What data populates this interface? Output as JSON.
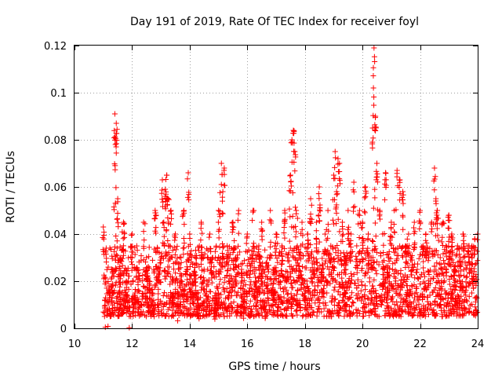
{
  "chart_data": {
    "type": "scatter",
    "title": "Day 191 of 2019, Rate Of TEC Index for receiver foyl",
    "xlabel": "GPS time / hours",
    "ylabel": "ROTI / TECUs",
    "xlim": [
      10,
      24
    ],
    "ylim": [
      0,
      0.12
    ],
    "xticks": [
      10,
      12,
      14,
      16,
      18,
      20,
      22,
      24
    ],
    "yticks": [
      0,
      0.02,
      0.04,
      0.06,
      0.08,
      0.1,
      0.12
    ],
    "xtick_labels": [
      "10",
      "12",
      "14",
      "16",
      "18",
      "20",
      "22",
      "24"
    ],
    "ytick_labels": [
      "0",
      "0.02",
      "0.04",
      "0.06",
      "0.08",
      "0.1",
      "0.12"
    ],
    "grid": true,
    "marker": "plus",
    "series_color": "#ff0000",
    "series": [
      {
        "name": "ROTI",
        "x": [
          11.0,
          11.05,
          11.1,
          11.15,
          11.2,
          11.3,
          11.4,
          11.42,
          11.45,
          11.5,
          11.55,
          11.6,
          11.7,
          11.8,
          11.9,
          12.0,
          12.1,
          12.2,
          12.3,
          12.4,
          12.5,
          12.6,
          12.7,
          12.8,
          12.9,
          13.0,
          13.05,
          13.1,
          13.15,
          13.2,
          13.25,
          13.3,
          13.35,
          13.4,
          13.5,
          13.6,
          13.7,
          13.8,
          13.9,
          13.95,
          14.0,
          14.1,
          14.2,
          14.3,
          14.4,
          14.5,
          14.6,
          14.7,
          14.8,
          14.9,
          15.0,
          15.1,
          15.15,
          15.2,
          15.3,
          15.4,
          15.5,
          15.6,
          15.7,
          15.8,
          15.9,
          16.0,
          16.1,
          16.2,
          16.3,
          16.4,
          16.5,
          16.6,
          16.7,
          16.8,
          16.9,
          17.0,
          17.1,
          17.2,
          17.3,
          17.4,
          17.5,
          17.55,
          17.6,
          17.65,
          17.7,
          17.8,
          17.9,
          18.0,
          18.1,
          18.2,
          18.3,
          18.4,
          18.5,
          18.6,
          18.7,
          18.8,
          18.9,
          19.0,
          19.05,
          19.1,
          19.15,
          19.2,
          19.3,
          19.4,
          19.5,
          19.6,
          19.7,
          19.8,
          19.9,
          20.0,
          20.1,
          20.2,
          20.3,
          20.35,
          20.38,
          20.4,
          20.45,
          20.5,
          20.6,
          20.7,
          20.8,
          20.9,
          21.0,
          21.1,
          21.2,
          21.3,
          21.4,
          21.5,
          21.6,
          21.7,
          21.8,
          21.9,
          22.0,
          22.1,
          22.2,
          22.3,
          22.4,
          22.5,
          22.55,
          22.6,
          22.7,
          22.8,
          22.9,
          23.0,
          23.1,
          23.2,
          23.3,
          23.4,
          23.5,
          23.6,
          23.7,
          23.8,
          23.9,
          24.0
        ],
        "y": [
          0.043,
          0.012,
          0.034,
          0.008,
          0.018,
          0.025,
          0.091,
          0.078,
          0.087,
          0.055,
          0.015,
          0.03,
          0.045,
          0.02,
          0.012,
          0.04,
          0.015,
          0.025,
          0.01,
          0.045,
          0.03,
          0.02,
          0.015,
          0.05,
          0.025,
          0.03,
          0.063,
          0.045,
          0.059,
          0.065,
          0.055,
          0.035,
          0.05,
          0.02,
          0.04,
          0.015,
          0.03,
          0.05,
          0.025,
          0.066,
          0.04,
          0.02,
          0.03,
          0.015,
          0.045,
          0.025,
          0.02,
          0.04,
          0.03,
          0.015,
          0.05,
          0.07,
          0.058,
          0.068,
          0.035,
          0.02,
          0.045,
          0.03,
          0.05,
          0.025,
          0.015,
          0.04,
          0.03,
          0.05,
          0.02,
          0.035,
          0.045,
          0.015,
          0.03,
          0.05,
          0.025,
          0.04,
          0.02,
          0.035,
          0.05,
          0.03,
          0.065,
          0.08,
          0.084,
          0.075,
          0.05,
          0.03,
          0.045,
          0.02,
          0.04,
          0.055,
          0.03,
          0.045,
          0.06,
          0.025,
          0.04,
          0.05,
          0.035,
          0.065,
          0.075,
          0.058,
          0.072,
          0.07,
          0.045,
          0.03,
          0.05,
          0.04,
          0.062,
          0.035,
          0.05,
          0.045,
          0.06,
          0.04,
          0.03,
          0.085,
          0.102,
          0.119,
          0.09,
          0.07,
          0.05,
          0.04,
          0.066,
          0.03,
          0.045,
          0.05,
          0.067,
          0.063,
          0.058,
          0.035,
          0.04,
          0.03,
          0.045,
          0.025,
          0.05,
          0.035,
          0.04,
          0.03,
          0.045,
          0.068,
          0.055,
          0.05,
          0.03,
          0.045,
          0.035,
          0.048,
          0.04,
          0.025,
          0.035,
          0.03,
          0.04,
          0.025,
          0.035,
          0.03,
          0.038,
          0.04
        ]
      }
    ],
    "dense_band": {
      "description_hidden": true,
      "x_range": [
        11.0,
        24.0
      ],
      "base": [
        0.005,
        0.035
      ]
    }
  }
}
